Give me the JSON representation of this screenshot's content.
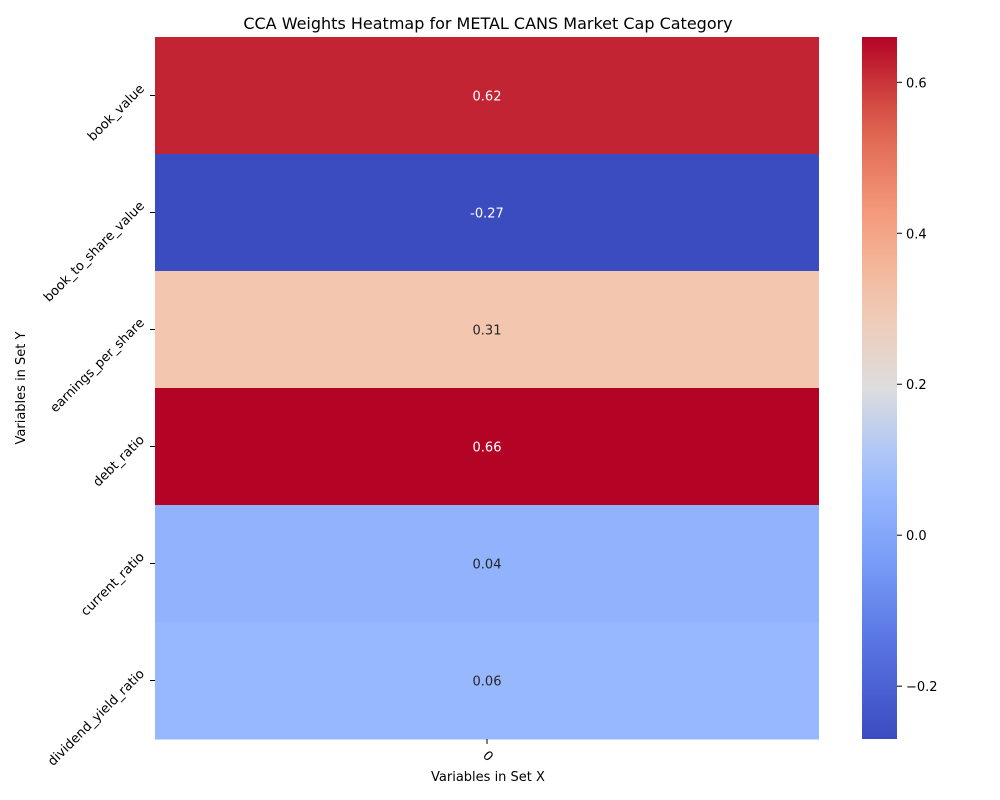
{
  "chart_data": {
    "type": "heatmap",
    "title": "CCA Weights Heatmap for METAL CANS Market Cap Category",
    "xlabel": "Variables in Set X",
    "ylabel": "Variables in Set Y",
    "x_categories": [
      "0"
    ],
    "y_categories": [
      "book_value",
      "book_to_share_value",
      "earnings_per_share",
      "debt_ratio",
      "current_ratio",
      "dividend_yield_ratio"
    ],
    "values": [
      [
        0.62
      ],
      [
        -0.27
      ],
      [
        0.31
      ],
      [
        0.66
      ],
      [
        0.04
      ],
      [
        0.06
      ]
    ],
    "value_labels": [
      "0.62",
      "-0.27",
      "0.31",
      "0.66",
      "0.04",
      "0.06"
    ],
    "colormap": "coolwarm",
    "color_range": [
      -0.27,
      0.66
    ],
    "colorbar_ticks": [
      {
        "value": 0.6,
        "label": "0.6"
      },
      {
        "value": 0.4,
        "label": "0.4"
      },
      {
        "value": 0.2,
        "label": "0.2"
      },
      {
        "value": 0.0,
        "label": "0.0"
      },
      {
        "value": -0.2,
        "label": "−0.2"
      }
    ],
    "colors": {
      "low": "#3b4cc0",
      "mid": "#dddddd",
      "high": "#b40426"
    }
  }
}
